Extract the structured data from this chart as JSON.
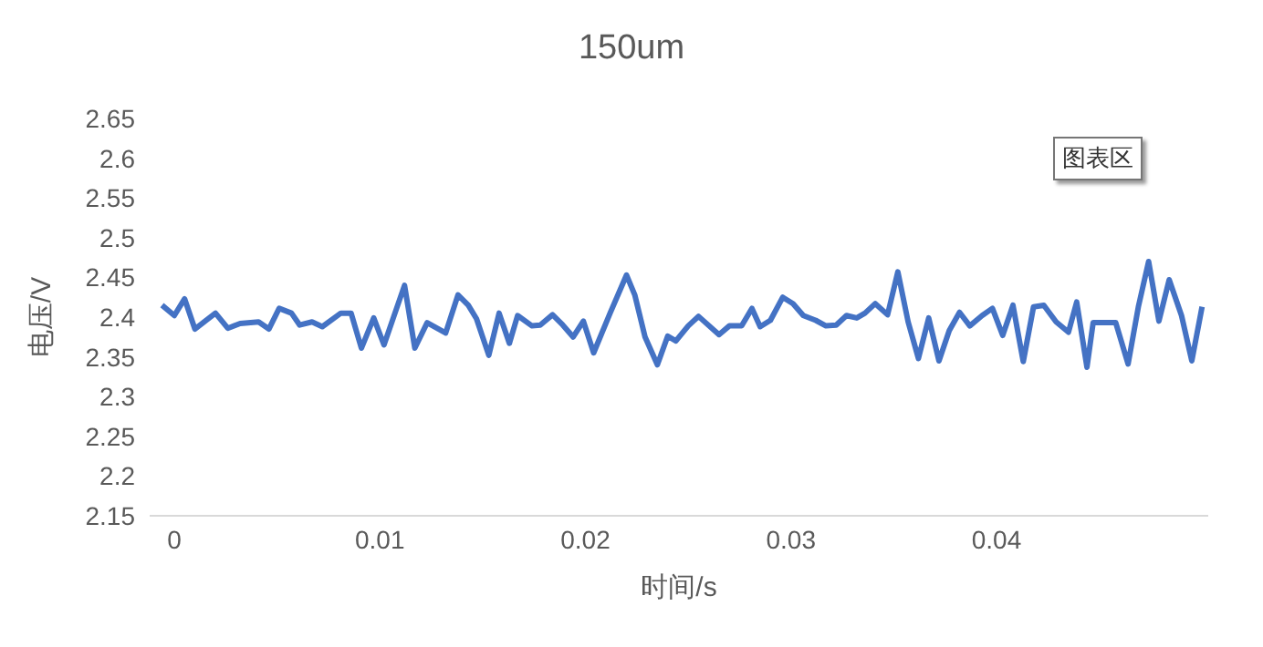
{
  "chart_data": {
    "type": "line",
    "title": "150um",
    "xlabel": "时间/s",
    "ylabel": "电压/V",
    "annotations": [
      "图表区"
    ],
    "x": [
      -0.0006,
      0,
      0.0005,
      0.001,
      0.002,
      0.0026,
      0.0032,
      0.0041,
      0.0046,
      0.0051,
      0.0057,
      0.0061,
      0.0067,
      0.0072,
      0.0081,
      0.0086,
      0.0091,
      0.0097,
      0.0102,
      0.0112,
      0.0117,
      0.0123,
      0.0132,
      0.0138,
      0.0143,
      0.0147,
      0.0153,
      0.0158,
      0.0163,
      0.0167,
      0.0174,
      0.0178,
      0.0184,
      0.0189,
      0.0194,
      0.0199,
      0.0204,
      0.0212,
      0.022,
      0.0224,
      0.0229,
      0.0235,
      0.024,
      0.0244,
      0.025,
      0.0255,
      0.0265,
      0.027,
      0.0276,
      0.0281,
      0.0285,
      0.029,
      0.0296,
      0.0301,
      0.0306,
      0.0312,
      0.0317,
      0.0322,
      0.0327,
      0.0332,
      0.0336,
      0.0341,
      0.0347,
      0.0352,
      0.0357,
      0.0362,
      0.0367,
      0.0372,
      0.0377,
      0.0382,
      0.0387,
      0.0393,
      0.0398,
      0.0403,
      0.0408,
      0.0413,
      0.0418,
      0.0423,
      0.0429,
      0.0435,
      0.0439,
      0.0444,
      0.0447,
      0.0458,
      0.0464,
      0.0469,
      0.0474,
      0.0479,
      0.0484,
      0.049,
      0.0495,
      0.05
    ],
    "series": [
      {
        "color": "#4472c4",
        "values": [
          2.415,
          2.402,
          2.423,
          2.385,
          2.405,
          2.386,
          2.392,
          2.394,
          2.385,
          2.411,
          2.405,
          2.39,
          2.394,
          2.388,
          2.405,
          2.405,
          2.361,
          2.399,
          2.365,
          2.44,
          2.361,
          2.393,
          2.38,
          2.428,
          2.415,
          2.398,
          2.352,
          2.405,
          2.367,
          2.402,
          2.389,
          2.39,
          2.403,
          2.39,
          2.375,
          2.395,
          2.355,
          2.405,
          2.453,
          2.428,
          2.375,
          2.34,
          2.376,
          2.37,
          2.389,
          2.401,
          2.378,
          2.389,
          2.389,
          2.411,
          2.388,
          2.396,
          2.425,
          2.417,
          2.402,
          2.396,
          2.389,
          2.39,
          2.402,
          2.399,
          2.405,
          2.417,
          2.403,
          2.457,
          2.394,
          2.348,
          2.399,
          2.345,
          2.383,
          2.406,
          2.389,
          2.402,
          2.411,
          2.377,
          2.415,
          2.344,
          2.413,
          2.415,
          2.394,
          2.381,
          2.419,
          2.337,
          2.393,
          2.393,
          2.341,
          2.413,
          2.47,
          2.395,
          2.447,
          2.402,
          2.345,
          2.413
        ]
      }
    ],
    "xlim": [
      -0.0012,
      0.0503
    ],
    "xticks": [
      0,
      0.01,
      0.02,
      0.03,
      0.04
    ],
    "ylim": [
      2.15,
      2.65
    ],
    "yticks": [
      2.15,
      2.2,
      2.25,
      2.3,
      2.35,
      2.4,
      2.45,
      2.5,
      2.55,
      2.6,
      2.65
    ],
    "grid": false,
    "legend": false,
    "marker": "none",
    "line_style": "solid"
  }
}
